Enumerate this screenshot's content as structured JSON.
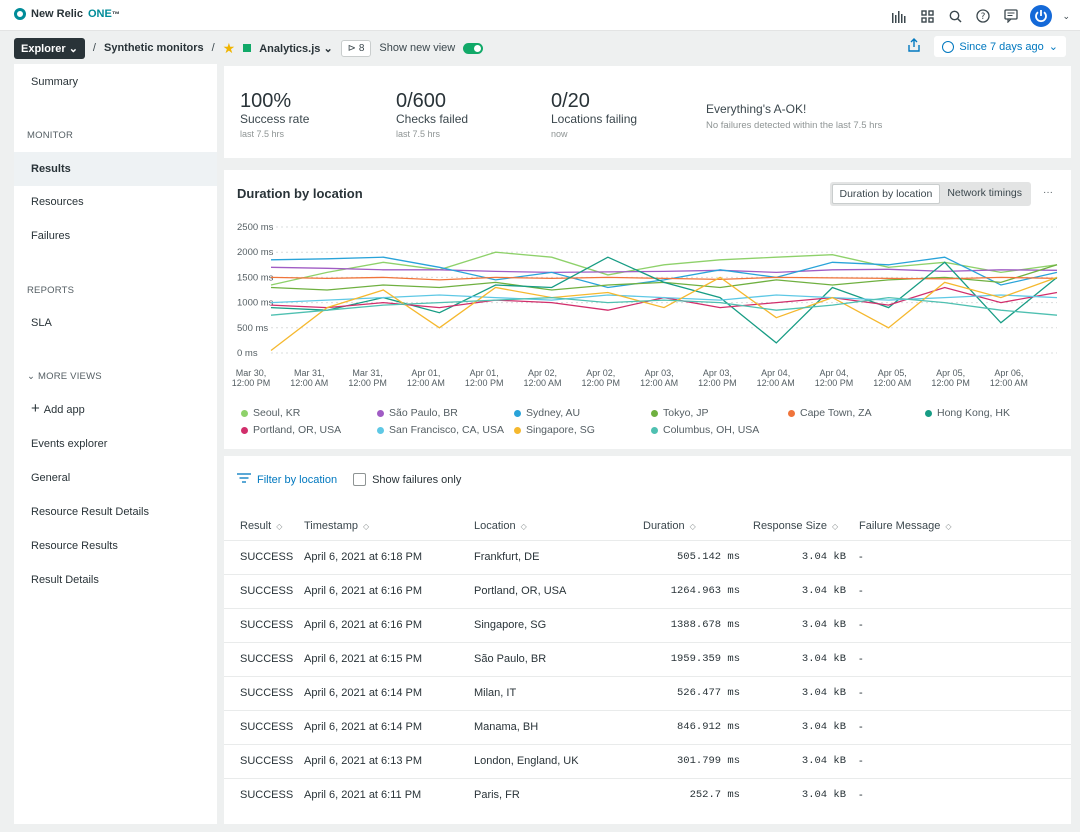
{
  "topbar": {
    "brand_name": "New Relic",
    "brand_product": "ONE",
    "brand_tm": "™"
  },
  "crumbs": {
    "explorer": "Explorer",
    "separator": "/",
    "section": "Synthetic monitors",
    "entity": "Analytics.js",
    "tag_count": "8",
    "show_new_view": "Show new view",
    "time_range": "Since 7 days ago"
  },
  "sidebar": {
    "summary": "Summary",
    "monitor_heading": "MONITOR",
    "results": "Results",
    "resources": "Resources",
    "failures": "Failures",
    "reports_heading": "REPORTS",
    "sla": "SLA",
    "more_views": "MORE VIEWS",
    "add_app": "Add app",
    "events_explorer": "Events explorer",
    "general": "General",
    "resource_result_details": "Resource Result Details",
    "resource_results": "Resource Results",
    "result_details": "Result Details"
  },
  "kpis": [
    {
      "value": "100%",
      "label": "Success rate",
      "sub": "last 7.5 hrs"
    },
    {
      "value": "0/600",
      "label": "Checks failed",
      "sub": "last 7.5 hrs"
    },
    {
      "value": "0/20",
      "label": "Locations failing",
      "sub": "now"
    }
  ],
  "status": {
    "title": "Everything's A-OK!",
    "sub": "No failures detected within the last 7.5 hrs"
  },
  "chart": {
    "title": "Duration by location",
    "tab_active": "Duration by location",
    "tab_other": "Network timings",
    "more": "···"
  },
  "chart_data": {
    "type": "line",
    "title": "Duration by location",
    "y_ticks": [
      "2500 ms",
      "2000 ms",
      "1500 ms",
      "1000 ms",
      "500 ms",
      "0 ms"
    ],
    "ylim": [
      0,
      2500
    ],
    "x_ticks": [
      [
        "Mar 30,",
        "12:00 PM"
      ],
      [
        "Mar 31,",
        "12:00 AM"
      ],
      [
        "Mar 31,",
        "12:00 PM"
      ],
      [
        "Apr 01,",
        "12:00 AM"
      ],
      [
        "Apr 01,",
        "12:00 PM"
      ],
      [
        "Apr 02,",
        "12:00 AM"
      ],
      [
        "Apr 02,",
        "12:00 PM"
      ],
      [
        "Apr 03,",
        "12:00 AM"
      ],
      [
        "Apr 03,",
        "12:00 PM"
      ],
      [
        "Apr 04,",
        "12:00 AM"
      ],
      [
        "Apr 04,",
        "12:00 PM"
      ],
      [
        "Apr 05,",
        "12:00 AM"
      ],
      [
        "Apr 05,",
        "12:00 PM"
      ],
      [
        "Apr 06,",
        "12:00 AM"
      ],
      [
        "Apr 06,",
        "12:00 PM"
      ]
    ],
    "x_count": 14,
    "grid": true,
    "legend_position": "bottom",
    "series": [
      {
        "name": "Seoul, KR",
        "color": "#8ed16a",
        "values": [
          1350,
          1600,
          1800,
          1650,
          2000,
          1900,
          1550,
          1750,
          1850,
          1900,
          1950,
          1700,
          1800,
          1600,
          1750
        ]
      },
      {
        "name": "São Paulo, BR",
        "color": "#a05cc4",
        "values": [
          1700,
          1680,
          1650,
          1650,
          1620,
          1600,
          1610,
          1620,
          1640,
          1600,
          1650,
          1660,
          1620,
          1650,
          1640
        ]
      },
      {
        "name": "Sydney, AU",
        "color": "#29a3d9",
        "values": [
          1850,
          1870,
          1900,
          1700,
          1450,
          1600,
          1300,
          1450,
          1650,
          1500,
          1800,
          1750,
          1900,
          1350,
          1600
        ]
      },
      {
        "name": "Tokyo, JP",
        "color": "#6fb040",
        "values": [
          1300,
          1250,
          1350,
          1300,
          1400,
          1250,
          1350,
          1400,
          1300,
          1450,
          1350,
          1450,
          1500,
          1400,
          1750
        ]
      },
      {
        "name": "Cape Town, ZA",
        "color": "#f0743a",
        "values": [
          1500,
          1480,
          1500,
          1450,
          1500,
          1480,
          1500,
          1480,
          1460,
          1500,
          1490,
          1480,
          1470,
          1500,
          1480
        ]
      },
      {
        "name": "Hong Kong, HK",
        "color": "#179c84",
        "values": [
          900,
          850,
          1100,
          800,
          1350,
          1300,
          1900,
          1400,
          1100,
          200,
          1300,
          900,
          1800,
          600,
          1500
        ]
      },
      {
        "name": "Portland, OR, USA",
        "color": "#d12e6b",
        "values": [
          950,
          900,
          1000,
          900,
          1050,
          1000,
          850,
          1100,
          900,
          1000,
          1100,
          950,
          1300,
          1000,
          1200
        ]
      },
      {
        "name": "San Francisco, CA, USA",
        "color": "#5ec8e5",
        "values": [
          1000,
          1050,
          1100,
          1150,
          1100,
          1050,
          1150,
          1100,
          1050,
          1150,
          1100,
          1050,
          1100,
          1150,
          1100
        ]
      },
      {
        "name": "Singapore, SG",
        "color": "#f5b82e",
        "values": [
          50,
          900,
          1250,
          500,
          1300,
          1100,
          1200,
          900,
          1500,
          700,
          1100,
          500,
          1400,
          1100,
          1500
        ]
      },
      {
        "name": "Columbus, OH, USA",
        "color": "#4fc0b1",
        "values": [
          750,
          850,
          950,
          1000,
          1050,
          1100,
          1000,
          1050,
          1000,
          850,
          950,
          1100,
          1000,
          850,
          750
        ]
      }
    ]
  },
  "results": {
    "filter_label": "Filter by location",
    "failures_only": "Show failures only",
    "columns": [
      "Result",
      "Timestamp",
      "Location",
      "Duration",
      "Response Size",
      "Failure Message"
    ],
    "sort_glyph": "◇",
    "rows": [
      [
        "SUCCESS",
        "April 6, 2021 at 6:18 PM",
        "Frankfurt, DE",
        "505.142 ms",
        "3.04 kB",
        "-"
      ],
      [
        "SUCCESS",
        "April 6, 2021 at 6:16 PM",
        "Portland, OR, USA",
        "1264.963 ms",
        "3.04 kB",
        "-"
      ],
      [
        "SUCCESS",
        "April 6, 2021 at 6:16 PM",
        "Singapore, SG",
        "1388.678 ms",
        "3.04 kB",
        "-"
      ],
      [
        "SUCCESS",
        "April 6, 2021 at 6:15 PM",
        "São Paulo, BR",
        "1959.359 ms",
        "3.04 kB",
        "-"
      ],
      [
        "SUCCESS",
        "April 6, 2021 at 6:14 PM",
        "Milan, IT",
        "526.477 ms",
        "3.04 kB",
        "-"
      ],
      [
        "SUCCESS",
        "April 6, 2021 at 6:14 PM",
        "Manama, BH",
        "846.912 ms",
        "3.04 kB",
        "-"
      ],
      [
        "SUCCESS",
        "April 6, 2021 at 6:13 PM",
        "London, England, UK",
        "301.799 ms",
        "3.04 kB",
        "-"
      ],
      [
        "SUCCESS",
        "April 6, 2021 at 6:11 PM",
        "Paris, FR",
        "252.7 ms",
        "3.04 kB",
        "-"
      ]
    ]
  }
}
